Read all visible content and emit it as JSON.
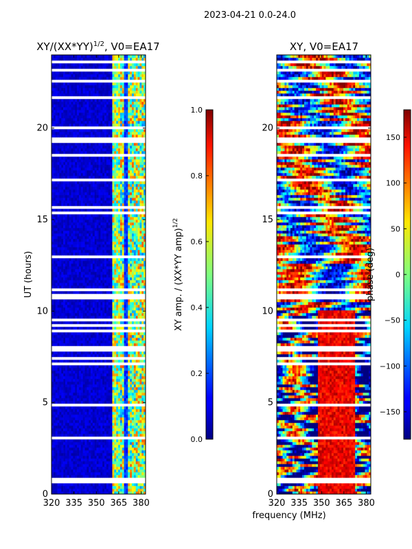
{
  "figure": {
    "suptitle": "2023-04-21 0.0-24.0",
    "xlabel_shared": "frequency (MHz)"
  },
  "chart_data": [
    {
      "type": "heatmap",
      "title_parts": [
        "XY/(XX*YY)",
        "1/2",
        ", V0=EA17"
      ],
      "xlabel": "",
      "ylabel": "UT (hours)",
      "x_ticks": [
        320,
        335,
        350,
        365,
        380
      ],
      "y_ticks": [
        0,
        5,
        10,
        15,
        20
      ],
      "xlim": [
        320,
        383
      ],
      "ylim": [
        0,
        24
      ],
      "colorbar": {
        "label_parts": [
          "XY amp. / (XX*YY amp)",
          "1/2"
        ],
        "range": [
          0.0,
          1.0
        ],
        "ticks": [
          "0.0",
          "0.2",
          "0.4",
          "0.6",
          "0.8",
          "1.0"
        ],
        "colormap": "jet"
      }
    },
    {
      "type": "heatmap",
      "title": "XY, V0=EA17",
      "xlabel": "frequency (MHz)",
      "ylabel": "",
      "x_ticks": [
        320,
        335,
        350,
        365,
        380
      ],
      "y_ticks": [
        0,
        5,
        10,
        15,
        20
      ],
      "xlim": [
        320,
        383
      ],
      "ylim": [
        0,
        24
      ],
      "colorbar": {
        "label": "phase (deg)",
        "range": [
          -180,
          180
        ],
        "ticks": [
          "150",
          "100",
          "50",
          "0",
          "−50",
          "−100",
          "−150"
        ],
        "tick_values": [
          150,
          100,
          50,
          0,
          -50,
          -100,
          -150
        ],
        "colormap": "jet"
      }
    }
  ],
  "colors": {
    "jet_low": "#00007f",
    "jet_mid": "#7fff7f",
    "jet_high": "#7f0000"
  }
}
